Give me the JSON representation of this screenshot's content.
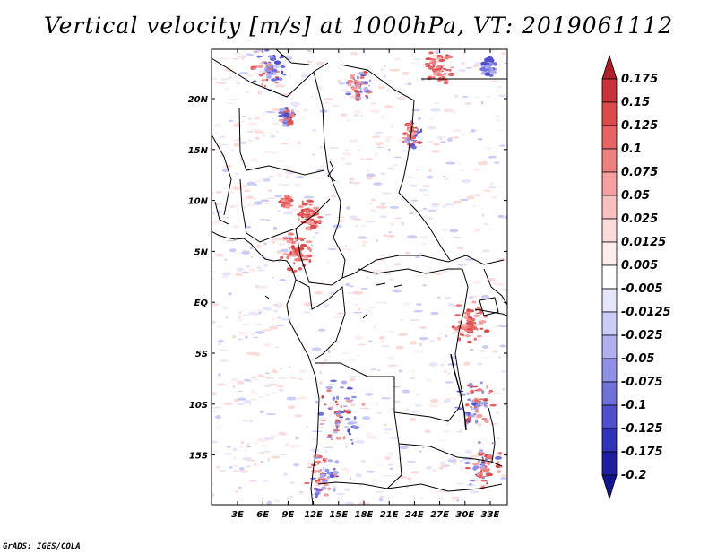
{
  "title": "Vertical velocity [m/s] at 1000hPa, VT: 2019061112",
  "credit": "GrADS: IGES/COLA",
  "map": {
    "lat_ticks": [
      "20N",
      "15N",
      "10N",
      "5N",
      "EQ",
      "5S",
      "10S",
      "15S"
    ],
    "lon_ticks": [
      "3E",
      "6E",
      "9E",
      "12E",
      "15E",
      "18E",
      "21E",
      "24E",
      "27E",
      "30E",
      "33E"
    ]
  },
  "colorbar": {
    "labels": [
      "0.175",
      "0.15",
      "0.125",
      "0.1",
      "0.075",
      "0.05",
      "0.025",
      "0.0125",
      "0.005",
      "-0.005",
      "-0.0125",
      "-0.025",
      "-0.05",
      "-0.075",
      "-0.1",
      "-0.125",
      "-0.175",
      "-0.2"
    ],
    "colors": [
      "#b01e28",
      "#c8323a",
      "#dc4b4b",
      "#e66464",
      "#ee8080",
      "#f4a0a0",
      "#f8c0c0",
      "#fbdada",
      "#fdeded",
      "#ffffff",
      "#e6e6fb",
      "#cccdf6",
      "#b0b0ef",
      "#9090e6",
      "#7070da",
      "#5050cc",
      "#3232b8",
      "#1e1e9e",
      "#14148c"
    ]
  }
}
